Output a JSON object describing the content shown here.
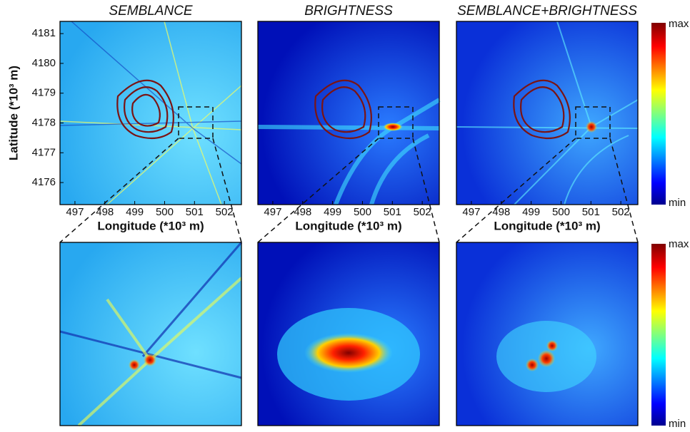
{
  "chart_data": [
    {
      "type": "heatmap",
      "title": "SEMBLANCE",
      "xlabel": "Longitude (*10³ m)",
      "ylabel": "Latitude (*10³ m)",
      "xlim": [
        496.5,
        502.57
      ],
      "xticks": [
        497,
        498,
        499,
        500,
        501,
        502
      ],
      "ylim": [
        4175.26,
        4181.41
      ],
      "yticks": [
        4176,
        4177,
        4178,
        4179,
        4180,
        4181
      ]
    },
    {
      "type": "heatmap",
      "title": "BRIGHTNESS",
      "xlabel": "Longitude (*10³ m)",
      "xlim": [
        496.5,
        502.57
      ],
      "xticks": [
        497,
        498,
        499,
        500,
        501,
        502
      ]
    },
    {
      "type": "heatmap",
      "title": "SEMBLANCE+BRIGHTNESS",
      "xlabel": "Longitude (*10³ m)",
      "xlim": [
        496.5,
        502.57
      ],
      "xticks": [
        497,
        498,
        499,
        500,
        501,
        502
      ],
      "colorbar": {
        "max": "max",
        "min": "min"
      }
    }
  ]
}
